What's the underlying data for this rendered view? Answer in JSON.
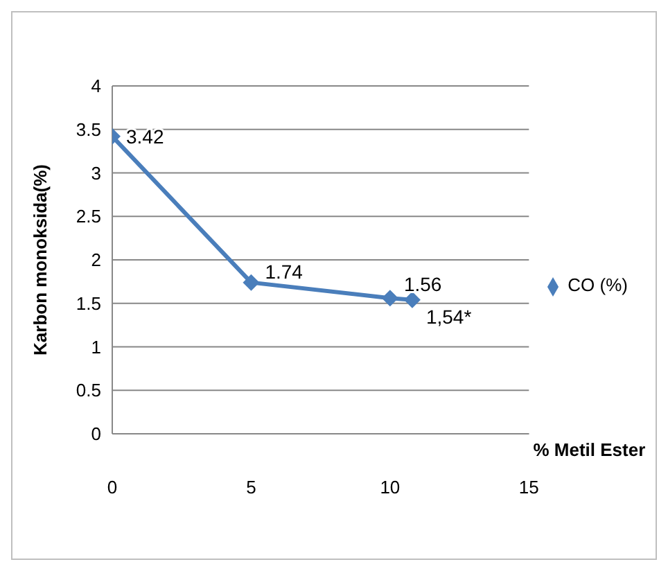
{
  "chart_data": {
    "type": "line",
    "xlabel": "% Metil Ester",
    "ylabel": "Karbon monoksida(%)",
    "x": [
      0,
      5,
      10,
      10.8
    ],
    "series": [
      {
        "name": "CO (%)",
        "color": "#4a7ebb",
        "values": [
          3.42,
          1.74,
          1.56,
          1.54
        ],
        "value_labels": [
          "3.42",
          "1.74",
          "1.56",
          "1,54*"
        ]
      }
    ],
    "xlim": [
      0,
      15
    ],
    "xticks": [
      0,
      5,
      10,
      15
    ],
    "ylim": [
      0,
      4
    ],
    "yticks": [
      0,
      0.5,
      1,
      1.5,
      2,
      2.5,
      3,
      3.5,
      4
    ],
    "grid": "y",
    "legend": "right",
    "marker": "diamond",
    "line_style": "solid"
  }
}
